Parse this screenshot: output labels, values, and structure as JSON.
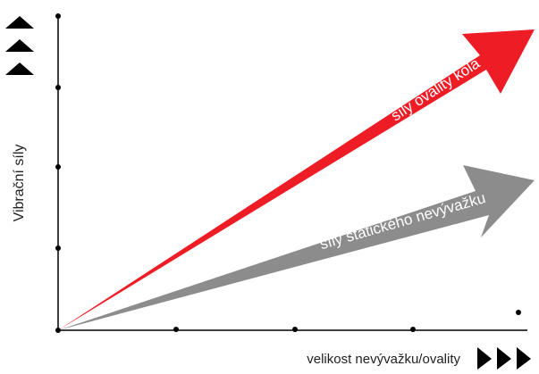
{
  "labels": {
    "y_axis": "Vibrační síly",
    "x_axis": "velikost nevývažku/ovality",
    "red_arrow": "síly ovality kola",
    "gray_arrow": "síly statického nevývažku"
  },
  "colors": {
    "red_arrow": "#ee1c25",
    "gray_arrow": "#8c8c8c",
    "axis": "#000000",
    "text_on_arrow": "#ffffff",
    "label_text": "#222222"
  },
  "icons": {
    "y_axis_indicator": "triple-up-triangle-icon",
    "x_axis_indicator": "triple-right-triangle-icon"
  }
}
